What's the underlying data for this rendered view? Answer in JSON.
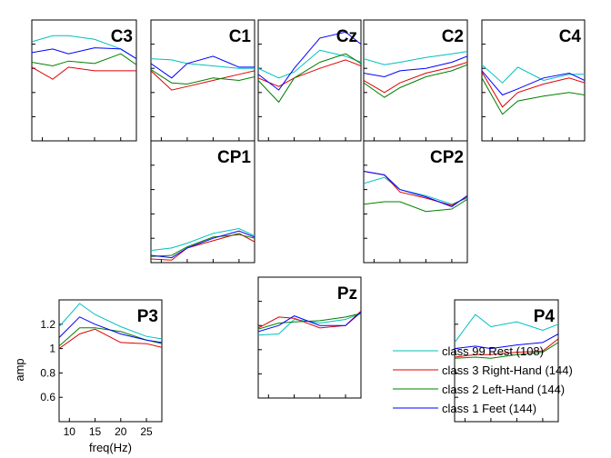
{
  "chart_data": {
    "type": "line",
    "xlabel": "freq(Hz)",
    "ylabel": "amp",
    "x": [
      8,
      12,
      15,
      20,
      25,
      28
    ],
    "xticks": [
      10,
      15,
      20,
      25
    ],
    "yticks": [
      0.6,
      0.8,
      1,
      1.2
    ],
    "xlim": [
      8,
      28
    ],
    "ylim": [
      0.4,
      1.4
    ],
    "grid": false,
    "legend_position": "bottom-right",
    "series_meta": [
      {
        "key": "rest",
        "name": "class 99 Rest (108)",
        "color": "#00BFBF"
      },
      {
        "key": "right",
        "name": "class 3 Right-Hand (144)",
        "color": "#E00000"
      },
      {
        "key": "left",
        "name": "class 2 Left-Hand (144)",
        "color": "#007F00"
      },
      {
        "key": "feet",
        "name": "class 1 Feet (144)",
        "color": "#0000FF"
      }
    ],
    "panels": [
      {
        "title": "C3",
        "series": {
          "rest": [
            1.22,
            1.27,
            1.27,
            1.24,
            1.16,
            1.08
          ],
          "right": [
            1.01,
            0.91,
            1.01,
            0.98,
            0.98,
            0.98
          ],
          "left": [
            1.05,
            1.02,
            1.06,
            1.04,
            1.12,
            1.03
          ],
          "feet": [
            1.13,
            1.16,
            1.12,
            1.17,
            1.16,
            1.08
          ]
        }
      },
      {
        "title": "C1",
        "series": {
          "rest": [
            1.08,
            1.07,
            1.04,
            1.02,
            1.0,
            1.0
          ],
          "right": [
            0.98,
            0.82,
            0.85,
            0.9,
            0.95,
            0.98
          ],
          "left": [
            0.99,
            0.88,
            0.87,
            0.92,
            0.9,
            0.93
          ],
          "feet": [
            1.04,
            0.92,
            1.04,
            1.1,
            1.01,
            1.01
          ]
        }
      },
      {
        "title": "Cz",
        "series": {
          "rest": [
            1.0,
            0.92,
            0.97,
            1.15,
            1.1,
            1.05
          ],
          "right": [
            0.92,
            0.85,
            0.92,
            1.0,
            1.07,
            1.02
          ],
          "left": [
            0.9,
            0.72,
            0.92,
            1.05,
            1.12,
            1.04
          ],
          "feet": [
            0.95,
            0.82,
            1.0,
            1.25,
            1.3,
            1.2
          ]
        }
      },
      {
        "title": "C2",
        "series": {
          "rest": [
            1.08,
            1.03,
            1.05,
            1.09,
            1.12,
            1.14
          ],
          "right": [
            0.9,
            0.8,
            0.88,
            0.96,
            1.01,
            1.05
          ],
          "left": [
            0.88,
            0.76,
            0.84,
            0.93,
            0.98,
            1.03
          ],
          "feet": [
            0.96,
            0.93,
            0.98,
            1.0,
            1.05,
            1.1
          ]
        }
      },
      {
        "title": "C4",
        "series": {
          "rest": [
            1.03,
            0.88,
            1.01,
            0.9,
            0.95,
            0.95
          ],
          "right": [
            0.97,
            0.68,
            0.8,
            0.87,
            0.92,
            0.88
          ],
          "left": [
            0.92,
            0.62,
            0.73,
            0.77,
            0.8,
            0.78
          ],
          "feet": [
            0.98,
            0.78,
            0.83,
            0.92,
            0.96,
            0.9
          ]
        }
      },
      {
        "title": "CP1",
        "series": {
          "rest": [
            0.5,
            0.52,
            0.56,
            0.64,
            0.68,
            0.62
          ],
          "right": [
            0.43,
            0.42,
            0.52,
            0.58,
            0.64,
            0.57
          ],
          "left": [
            0.45,
            0.46,
            0.53,
            0.61,
            0.63,
            0.6
          ],
          "feet": [
            0.46,
            0.44,
            0.52,
            0.6,
            0.66,
            0.61
          ]
        }
      },
      {
        "title": "CP2",
        "series": {
          "rest": [
            1.05,
            1.1,
            1.0,
            0.95,
            0.88,
            0.93
          ],
          "right": [
            1.15,
            1.12,
            0.98,
            0.93,
            0.87,
            0.94
          ],
          "left": [
            0.88,
            0.9,
            0.9,
            0.82,
            0.84,
            0.92
          ],
          "feet": [
            1.15,
            1.12,
            1.0,
            0.94,
            0.86,
            0.95
          ]
        }
      },
      {
        "title": "P3",
        "series": {
          "rest": [
            1.18,
            1.37,
            1.28,
            1.18,
            1.1,
            1.08
          ],
          "right": [
            1.0,
            1.12,
            1.16,
            1.05,
            1.04,
            1.01
          ],
          "left": [
            1.02,
            1.17,
            1.17,
            1.14,
            1.07,
            1.04
          ],
          "feet": [
            1.09,
            1.26,
            1.2,
            1.12,
            1.07,
            1.05
          ]
        }
      },
      {
        "title": "Pz",
        "series": {
          "rest": [
            0.92,
            0.93,
            1.05,
            1.02,
            1.05,
            1.1
          ],
          "right": [
            0.98,
            1.07,
            1.06,
            0.98,
            1.0,
            1.12
          ],
          "left": [
            0.97,
            1.02,
            1.03,
            1.04,
            1.07,
            1.1
          ],
          "feet": [
            0.95,
            1.0,
            1.08,
            1.0,
            1.0,
            1.11
          ]
        }
      },
      {
        "title": "P4",
        "series": {
          "rest": [
            1.05,
            1.28,
            1.18,
            1.22,
            1.15,
            1.2
          ],
          "right": [
            0.93,
            0.95,
            0.95,
            0.97,
            0.98,
            1.08
          ],
          "left": [
            0.92,
            0.93,
            0.92,
            0.95,
            0.97,
            1.05
          ],
          "feet": [
            1.0,
            1.02,
            1.0,
            1.03,
            1.05,
            1.12
          ]
        }
      }
    ]
  }
}
